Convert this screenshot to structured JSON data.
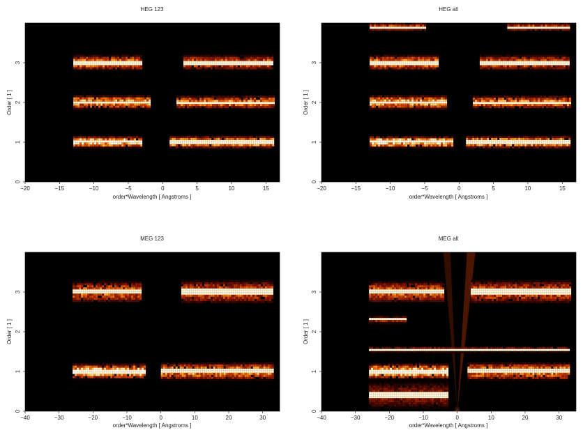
{
  "colors": {
    "plot_background": "#000000",
    "colormap": [
      "#000000",
      "#3a0600",
      "#8a1800",
      "#d84a00",
      "#ff9a1c",
      "#ffe9a8",
      "#ffffff"
    ]
  },
  "chart_data": [
    {
      "type": "heatmap",
      "title": "HEG 123",
      "xlabel": "order*Wavelength [ Angstroms ]",
      "ylabel": "Order [ 1 ]",
      "xlim": [
        -20,
        17
      ],
      "ylim": [
        0,
        4
      ],
      "xticks": [
        -20,
        -15,
        -10,
        -5,
        0,
        5,
        10,
        15
      ],
      "yticks": [
        0,
        1,
        2,
        3
      ],
      "bands": [
        {
          "order": 1,
          "x": [
            -13,
            -3
          ],
          "h": 0.3,
          "intensity": 0.9
        },
        {
          "order": 1,
          "x": [
            1,
            16
          ],
          "h": 0.32,
          "intensity": 0.8
        },
        {
          "order": 2,
          "x": [
            -13,
            -2
          ],
          "h": 0.36,
          "intensity": 0.75
        },
        {
          "order": 2,
          "x": [
            2,
            16
          ],
          "h": 0.34,
          "intensity": 0.65
        },
        {
          "order": 3,
          "x": [
            -13,
            -3
          ],
          "h": 0.4,
          "intensity": 0.65
        },
        {
          "order": 3,
          "x": [
            3,
            16
          ],
          "h": 0.4,
          "intensity": 0.55
        }
      ]
    },
    {
      "type": "heatmap",
      "title": "HEG all",
      "xlabel": "order*Wavelength [ Angstroms ]",
      "ylabel": "Order [ 1 ]",
      "xlim": [
        -20,
        17
      ],
      "ylim": [
        0,
        4
      ],
      "xticks": [
        -20,
        -15,
        -10,
        -5,
        0,
        5,
        10,
        15
      ],
      "yticks": [
        0,
        1,
        2,
        3
      ],
      "bands": [
        {
          "order": 1,
          "x": [
            -13,
            -1
          ],
          "h": 0.3,
          "intensity": 0.9
        },
        {
          "order": 1,
          "x": [
            1,
            16
          ],
          "h": 0.32,
          "intensity": 0.8
        },
        {
          "order": 2,
          "x": [
            -13,
            -2
          ],
          "h": 0.36,
          "intensity": 0.75
        },
        {
          "order": 2,
          "x": [
            2,
            16
          ],
          "h": 0.34,
          "intensity": 0.65
        },
        {
          "order": 3,
          "x": [
            -13,
            -3
          ],
          "h": 0.4,
          "intensity": 0.65
        },
        {
          "order": 3,
          "x": [
            3,
            16
          ],
          "h": 0.4,
          "intensity": 0.55
        },
        {
          "order": 3.9,
          "x": [
            -13,
            -5
          ],
          "h": 0.22,
          "intensity": 0.5
        },
        {
          "order": 3.9,
          "x": [
            7,
            16
          ],
          "h": 0.22,
          "intensity": 0.5
        }
      ]
    },
    {
      "type": "heatmap",
      "title": "MEG 123",
      "xlabel": "order*Wavelength [ Angstroms ]",
      "ylabel": "Order [ 1 ]",
      "xlim": [
        -40,
        35
      ],
      "ylim": [
        0,
        4
      ],
      "xticks": [
        -40,
        -30,
        -20,
        -10,
        0,
        10,
        20,
        30
      ],
      "yticks": [
        0,
        1,
        2,
        3
      ],
      "bands": [
        {
          "order": 1,
          "x": [
            -26,
            -5
          ],
          "h": 0.4,
          "intensity": 0.85
        },
        {
          "order": 1,
          "x": [
            0,
            33
          ],
          "h": 0.46,
          "intensity": 0.7
        },
        {
          "order": 3,
          "x": [
            -26,
            -6
          ],
          "h": 0.55,
          "intensity": 0.6
        },
        {
          "order": 3,
          "x": [
            6,
            33
          ],
          "h": 0.6,
          "intensity": 0.55
        }
      ]
    },
    {
      "type": "heatmap",
      "title": "MEG all",
      "xlabel": "order*Wavelength [ Angstroms ]",
      "ylabel": "Order [ 1 ]",
      "xlim": [
        -40,
        35
      ],
      "ylim": [
        0,
        4
      ],
      "xticks": [
        -40,
        -30,
        -20,
        -10,
        0,
        10,
        20,
        30
      ],
      "yticks": [
        0,
        1,
        2,
        3
      ],
      "bands": [
        {
          "order": 0.4,
          "x": [
            -26,
            -3
          ],
          "h": 0.7,
          "intensity": 0.35
        },
        {
          "order": 1,
          "x": [
            -26,
            -3
          ],
          "h": 0.4,
          "intensity": 0.85
        },
        {
          "order": 1,
          "x": [
            3,
            33
          ],
          "h": 0.46,
          "intensity": 0.7
        },
        {
          "order": 1.55,
          "x": [
            -26,
            33
          ],
          "h": 0.14,
          "intensity": 0.45
        },
        {
          "order": 2.3,
          "x": [
            -26,
            -15
          ],
          "h": 0.2,
          "intensity": 0.4
        },
        {
          "order": 3,
          "x": [
            -26,
            -4
          ],
          "h": 0.55,
          "intensity": 0.6
        },
        {
          "order": 3,
          "x": [
            4,
            33
          ],
          "h": 0.6,
          "intensity": 0.55
        }
      ]
    }
  ]
}
